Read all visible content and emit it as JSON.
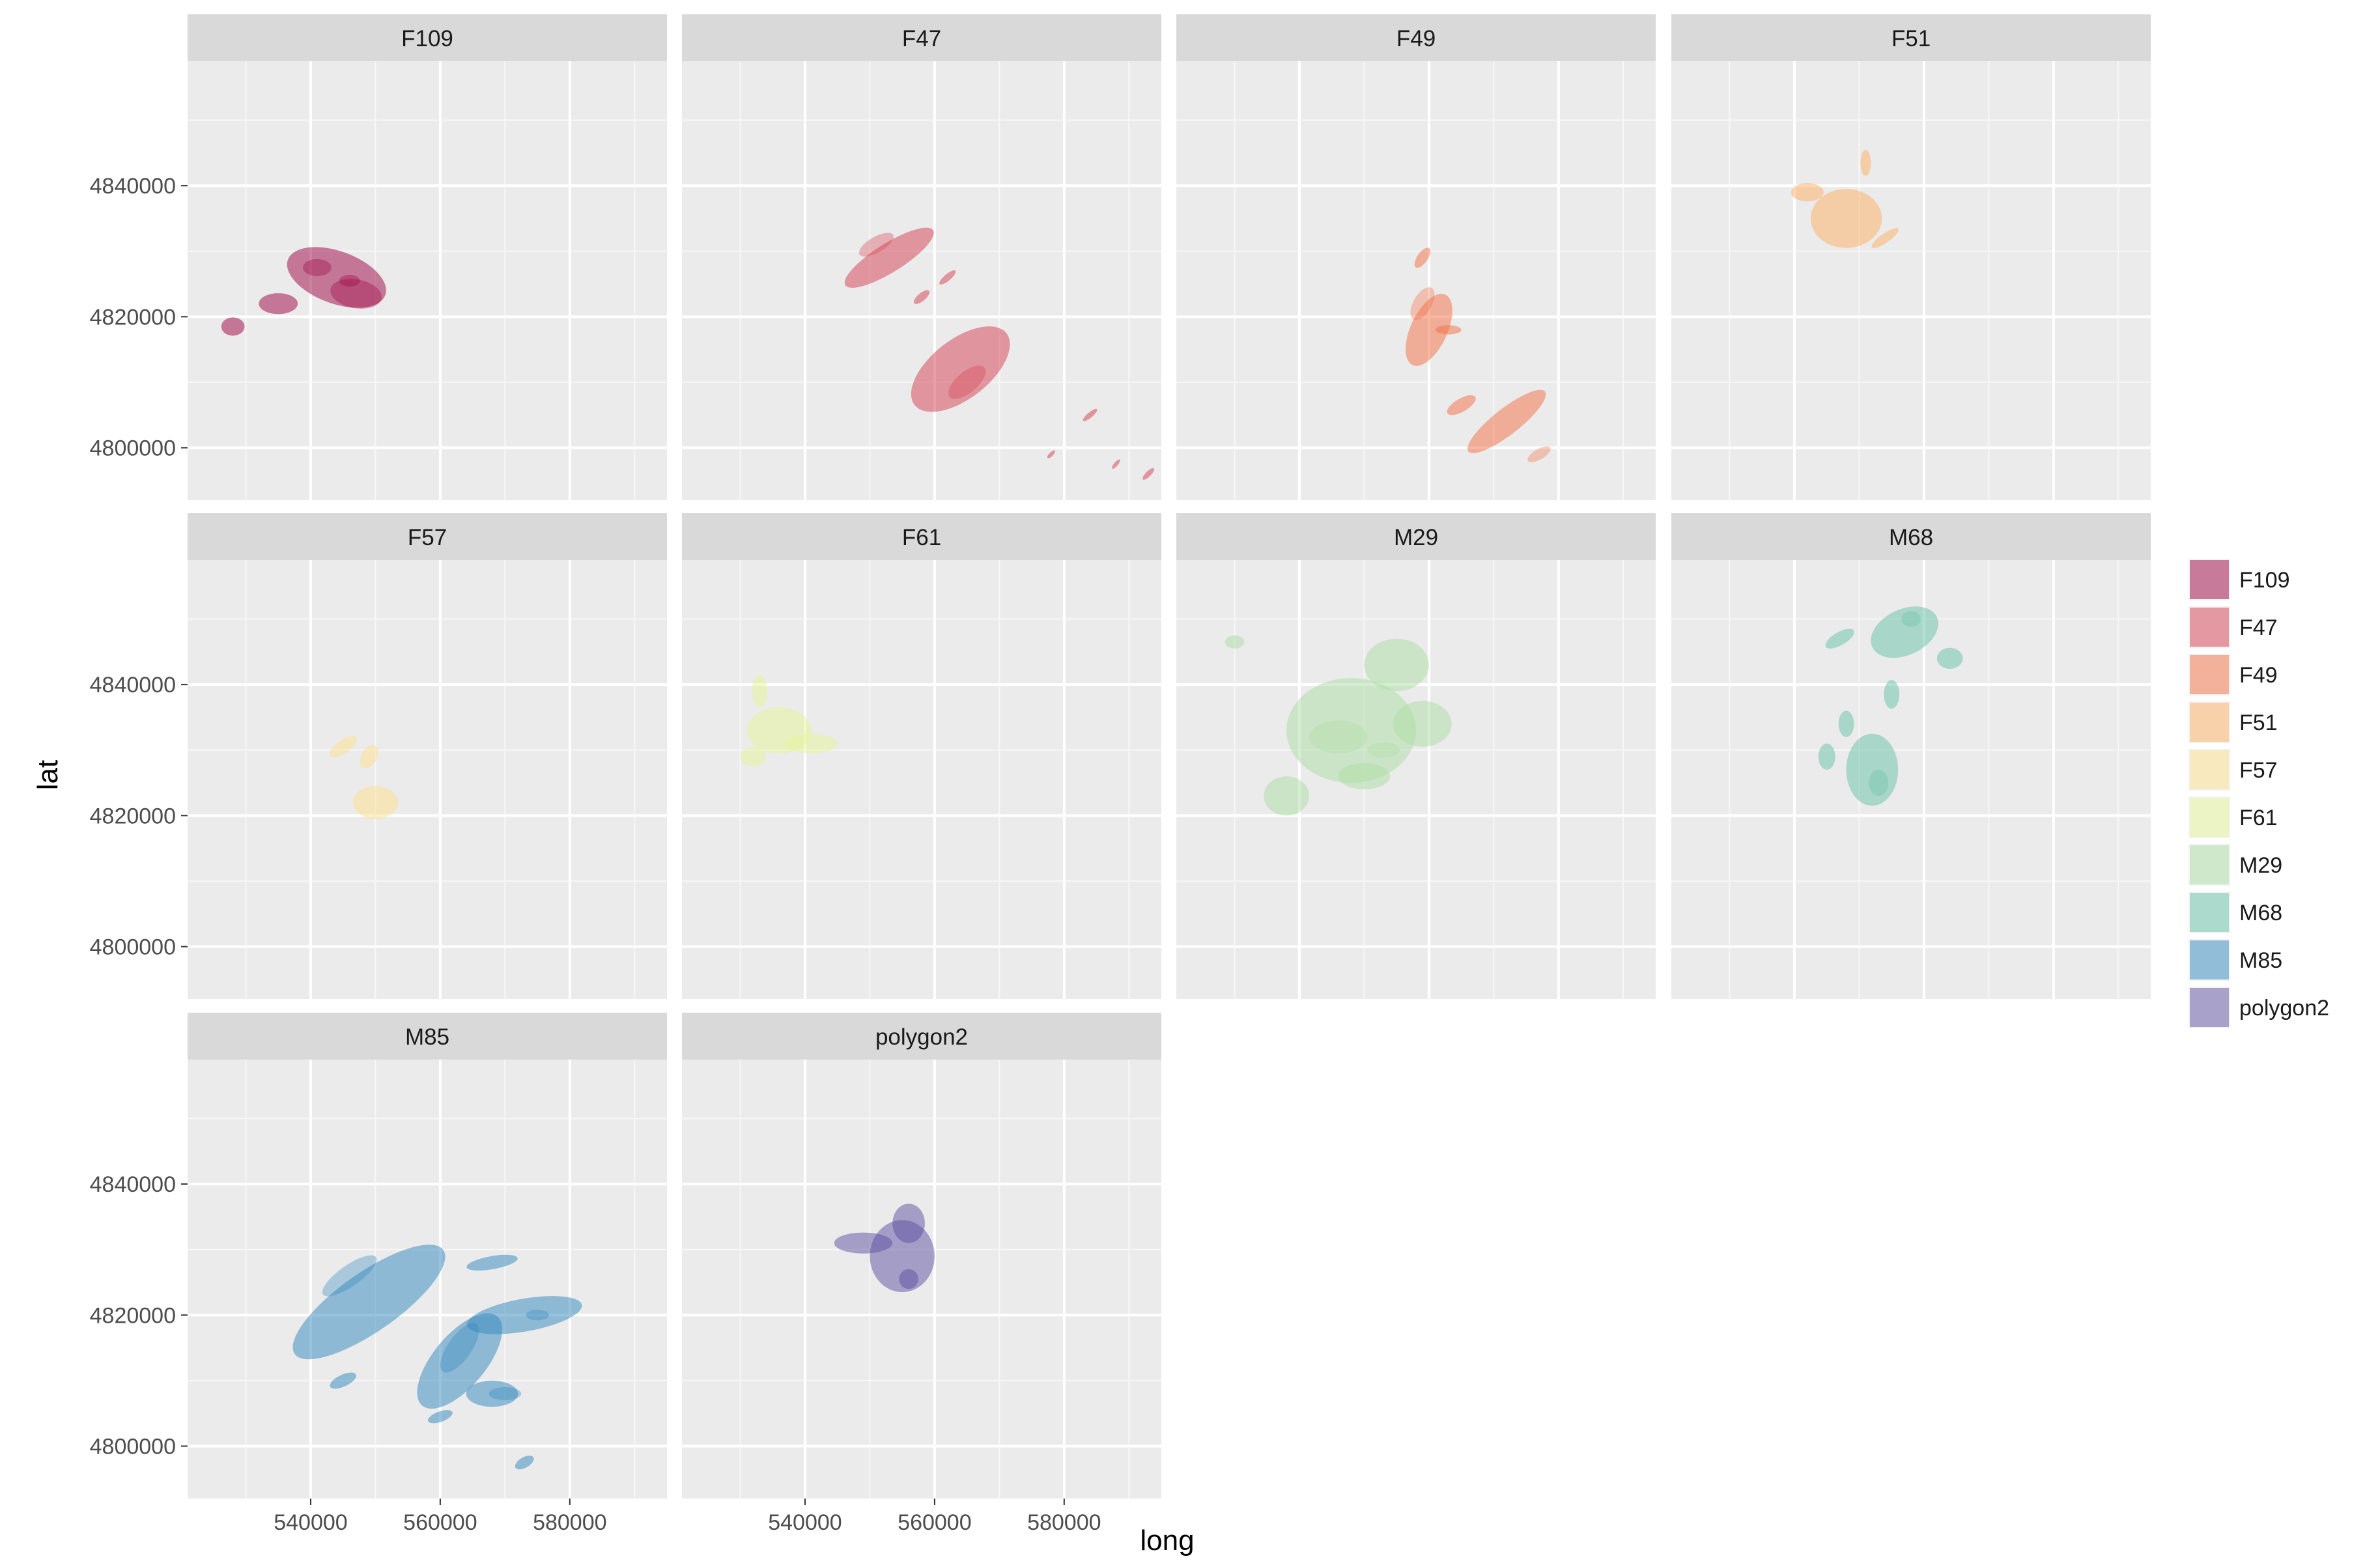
{
  "chart_data": {
    "type": "area",
    "subtype": "faceted 2D density contour (filled), facet_wrap by id",
    "xlabel": "long",
    "ylabel": "lat",
    "xlim": [
      521000,
      595000
    ],
    "ylim": [
      4792000,
      4859000
    ],
    "x_ticks": [
      540000,
      560000,
      580000
    ],
    "x_tick_labels": [
      "540000",
      "560000",
      "580000"
    ],
    "y_ticks": [
      4800000,
      4820000,
      4840000
    ],
    "y_tick_labels": [
      "4800000",
      "4820000",
      "4840000"
    ],
    "grid": true,
    "legend_position": "right",
    "facets": [
      {
        "label": "F109",
        "color": "#9E0142",
        "blobs": [
          {
            "cx": 544000,
            "cy": 4826000,
            "rx": 8000,
            "ry": 4000,
            "rot": -20,
            "level": 1
          },
          {
            "cx": 535000,
            "cy": 4822000,
            "rx": 3000,
            "ry": 1600,
            "rot": 0,
            "level": 1
          },
          {
            "cx": 528000,
            "cy": 4818500,
            "rx": 1800,
            "ry": 1400,
            "rot": 0,
            "level": 1
          },
          {
            "cx": 547000,
            "cy": 4823500,
            "rx": 4000,
            "ry": 2200,
            "rot": -10,
            "level": 2
          },
          {
            "cx": 541000,
            "cy": 4827500,
            "rx": 2200,
            "ry": 1300,
            "rot": 0,
            "level": 2
          },
          {
            "cx": 546000,
            "cy": 4825500,
            "rx": 1600,
            "ry": 900,
            "rot": 0,
            "level": 3
          }
        ]
      },
      {
        "label": "F47",
        "color": "#D53E4F",
        "blobs": [
          {
            "cx": 553000,
            "cy": 4829000,
            "rx": 8000,
            "ry": 2200,
            "rot": 32,
            "level": 1
          },
          {
            "cx": 564000,
            "cy": 4812000,
            "rx": 9000,
            "ry": 4500,
            "rot": 38,
            "level": 1
          },
          {
            "cx": 558000,
            "cy": 4823000,
            "rx": 1500,
            "ry": 600,
            "rot": 40,
            "level": 1
          },
          {
            "cx": 584000,
            "cy": 4805000,
            "rx": 1400,
            "ry": 400,
            "rot": 40,
            "level": 1
          },
          {
            "cx": 593000,
            "cy": 4796000,
            "rx": 1200,
            "ry": 400,
            "rot": 45,
            "level": 1
          },
          {
            "cx": 588000,
            "cy": 4797500,
            "rx": 900,
            "ry": 300,
            "rot": 50,
            "level": 1
          },
          {
            "cx": 578000,
            "cy": 4799000,
            "rx": 800,
            "ry": 300,
            "rot": 45,
            "level": 1
          },
          {
            "cx": 562000,
            "cy": 4826000,
            "rx": 1600,
            "ry": 500,
            "rot": 40,
            "level": 1
          },
          {
            "cx": 551000,
            "cy": 4831000,
            "rx": 3000,
            "ry": 1200,
            "rot": 30,
            "level": 2
          },
          {
            "cx": 565000,
            "cy": 4810000,
            "rx": 3500,
            "ry": 1600,
            "rot": 40,
            "level": 2
          }
        ]
      },
      {
        "label": "F49",
        "color": "#F46D43",
        "blobs": [
          {
            "cx": 560000,
            "cy": 4818000,
            "rx": 6000,
            "ry": 2800,
            "rot": 65,
            "level": 1
          },
          {
            "cx": 572000,
            "cy": 4804000,
            "rx": 7500,
            "ry": 2000,
            "rot": 38,
            "level": 1
          },
          {
            "cx": 565000,
            "cy": 4806500,
            "rx": 2500,
            "ry": 1000,
            "rot": 30,
            "level": 1
          },
          {
            "cx": 559000,
            "cy": 4829000,
            "rx": 1800,
            "ry": 800,
            "rot": 55,
            "level": 1
          },
          {
            "cx": 563000,
            "cy": 4818000,
            "rx": 2000,
            "ry": 700,
            "rot": 0,
            "level": 1
          },
          {
            "cx": 559000,
            "cy": 4822000,
            "rx": 2800,
            "ry": 1400,
            "rot": 60,
            "level": 2
          },
          {
            "cx": 577000,
            "cy": 4799000,
            "rx": 2000,
            "ry": 800,
            "rot": 30,
            "level": 2
          }
        ]
      },
      {
        "label": "F51",
        "color": "#FDAE61",
        "blobs": [
          {
            "cx": 548000,
            "cy": 4835000,
            "rx": 5500,
            "ry": 4500,
            "rot": 0,
            "level": 1
          },
          {
            "cx": 542000,
            "cy": 4839000,
            "rx": 2500,
            "ry": 1400,
            "rot": 0,
            "level": 1
          },
          {
            "cx": 551000,
            "cy": 4843500,
            "rx": 800,
            "ry": 2000,
            "rot": 0,
            "level": 1
          },
          {
            "cx": 554000,
            "cy": 4832000,
            "rx": 2500,
            "ry": 700,
            "rot": 35,
            "level": 1
          }
        ]
      },
      {
        "label": "F57",
        "color": "#FEE08B",
        "blobs": [
          {
            "cx": 550000,
            "cy": 4822000,
            "rx": 3500,
            "ry": 2500,
            "rot": 0,
            "level": 1
          },
          {
            "cx": 545000,
            "cy": 4830500,
            "rx": 2500,
            "ry": 1000,
            "rot": 35,
            "level": 1
          },
          {
            "cx": 549000,
            "cy": 4829000,
            "rx": 2000,
            "ry": 1200,
            "rot": 60,
            "level": 1
          }
        ]
      },
      {
        "label": "F61",
        "color": "#E6F598",
        "blobs": [
          {
            "cx": 536000,
            "cy": 4833000,
            "rx": 5000,
            "ry": 3500,
            "rot": 0,
            "level": 1
          },
          {
            "cx": 541000,
            "cy": 4831000,
            "rx": 4000,
            "ry": 1500,
            "rot": 0,
            "level": 1
          },
          {
            "cx": 533000,
            "cy": 4839000,
            "rx": 1200,
            "ry": 2500,
            "rot": 0,
            "level": 1
          },
          {
            "cx": 532000,
            "cy": 4829000,
            "rx": 2000,
            "ry": 1500,
            "rot": 0,
            "level": 1
          }
        ]
      },
      {
        "label": "M29",
        "color": "#ABDDA4",
        "blobs": [
          {
            "cx": 548000,
            "cy": 4833000,
            "rx": 10000,
            "ry": 8000,
            "rot": 0,
            "level": 1
          },
          {
            "cx": 555000,
            "cy": 4843000,
            "rx": 5000,
            "ry": 4000,
            "rot": 0,
            "level": 1
          },
          {
            "cx": 538000,
            "cy": 4823000,
            "rx": 3500,
            "ry": 3000,
            "rot": 0,
            "level": 1
          },
          {
            "cx": 530000,
            "cy": 4846500,
            "rx": 1500,
            "ry": 1000,
            "rot": 0,
            "level": 1
          },
          {
            "cx": 559000,
            "cy": 4834000,
            "rx": 4500,
            "ry": 3500,
            "rot": 0,
            "level": 1
          },
          {
            "cx": 550000,
            "cy": 4826000,
            "rx": 4000,
            "ry": 2000,
            "rot": 0,
            "level": 1
          },
          {
            "cx": 546000,
            "cy": 4832000,
            "rx": 4500,
            "ry": 2500,
            "rot": 0,
            "level": 2
          },
          {
            "cx": 553000,
            "cy": 4830000,
            "rx": 2500,
            "ry": 1200,
            "rot": 0,
            "level": 2
          }
        ]
      },
      {
        "label": "M68",
        "color": "#66C2A5",
        "blobs": [
          {
            "cx": 552000,
            "cy": 4827000,
            "rx": 4000,
            "ry": 5500,
            "rot": 0,
            "level": 1
          },
          {
            "cx": 557000,
            "cy": 4848000,
            "rx": 5500,
            "ry": 3500,
            "rot": 25,
            "level": 1
          },
          {
            "cx": 548000,
            "cy": 4834000,
            "rx": 1200,
            "ry": 2000,
            "rot": 0,
            "level": 1
          },
          {
            "cx": 545000,
            "cy": 4829000,
            "rx": 1300,
            "ry": 2000,
            "rot": 0,
            "level": 1
          },
          {
            "cx": 564000,
            "cy": 4844000,
            "rx": 2000,
            "ry": 1600,
            "rot": 0,
            "level": 1
          },
          {
            "cx": 547000,
            "cy": 4847000,
            "rx": 2500,
            "ry": 1000,
            "rot": 30,
            "level": 1
          },
          {
            "cx": 555000,
            "cy": 4838500,
            "rx": 1200,
            "ry": 2200,
            "rot": 0,
            "level": 1
          },
          {
            "cx": 553000,
            "cy": 4825000,
            "rx": 1500,
            "ry": 2000,
            "rot": 0,
            "level": 2
          },
          {
            "cx": 558000,
            "cy": 4850000,
            "rx": 1500,
            "ry": 1200,
            "rot": 0,
            "level": 2
          }
        ]
      },
      {
        "label": "M85",
        "color": "#3288BD",
        "blobs": [
          {
            "cx": 549000,
            "cy": 4822000,
            "rx": 14000,
            "ry": 4500,
            "rot": 35,
            "level": 1
          },
          {
            "cx": 563000,
            "cy": 4813000,
            "rx": 9000,
            "ry": 4000,
            "rot": 50,
            "level": 1
          },
          {
            "cx": 573000,
            "cy": 4820000,
            "rx": 9000,
            "ry": 2500,
            "rot": 10,
            "level": 1
          },
          {
            "cx": 568000,
            "cy": 4808000,
            "rx": 4000,
            "ry": 2000,
            "rot": 0,
            "level": 1
          },
          {
            "cx": 545000,
            "cy": 4810000,
            "rx": 2200,
            "ry": 900,
            "rot": 25,
            "level": 1
          },
          {
            "cx": 560000,
            "cy": 4804500,
            "rx": 2000,
            "ry": 800,
            "rot": 20,
            "level": 1
          },
          {
            "cx": 573000,
            "cy": 4797500,
            "rx": 1600,
            "ry": 800,
            "rot": 30,
            "level": 1
          },
          {
            "cx": 568000,
            "cy": 4828000,
            "rx": 4000,
            "ry": 1000,
            "rot": 10,
            "level": 1
          },
          {
            "cx": 546000,
            "cy": 4826000,
            "rx": 5000,
            "ry": 1600,
            "rot": 35,
            "level": 2
          },
          {
            "cx": 563000,
            "cy": 4815000,
            "rx": 4500,
            "ry": 1800,
            "rot": 55,
            "level": 2
          },
          {
            "cx": 570000,
            "cy": 4808000,
            "rx": 2500,
            "ry": 1000,
            "rot": 0,
            "level": 2
          },
          {
            "cx": 575000,
            "cy": 4820000,
            "rx": 1800,
            "ry": 800,
            "rot": 0,
            "level": 2
          }
        ]
      },
      {
        "label": "polygon2",
        "color": "#5E4FA2",
        "blobs": [
          {
            "cx": 555000,
            "cy": 4829000,
            "rx": 5000,
            "ry": 5500,
            "rot": 0,
            "level": 1
          },
          {
            "cx": 549000,
            "cy": 4831000,
            "rx": 4500,
            "ry": 1600,
            "rot": 0,
            "level": 1
          },
          {
            "cx": 556000,
            "cy": 4825500,
            "rx": 1500,
            "ry": 1500,
            "rot": 0,
            "level": 1
          },
          {
            "cx": 556000,
            "cy": 4834000,
            "rx": 2500,
            "ry": 3000,
            "rot": 0,
            "level": 1
          }
        ]
      }
    ],
    "legend": [
      {
        "label": "F109",
        "color": "#9E0142"
      },
      {
        "label": "F47",
        "color": "#D53E4F"
      },
      {
        "label": "F49",
        "color": "#F46D43"
      },
      {
        "label": "F51",
        "color": "#FDAE61"
      },
      {
        "label": "F57",
        "color": "#FEE08B"
      },
      {
        "label": "F61",
        "color": "#E6F598"
      },
      {
        "label": "M29",
        "color": "#ABDDA4"
      },
      {
        "label": "M68",
        "color": "#66C2A5"
      },
      {
        "label": "M85",
        "color": "#3288BD"
      },
      {
        "label": "polygon2",
        "color": "#5E4FA2"
      }
    ]
  }
}
